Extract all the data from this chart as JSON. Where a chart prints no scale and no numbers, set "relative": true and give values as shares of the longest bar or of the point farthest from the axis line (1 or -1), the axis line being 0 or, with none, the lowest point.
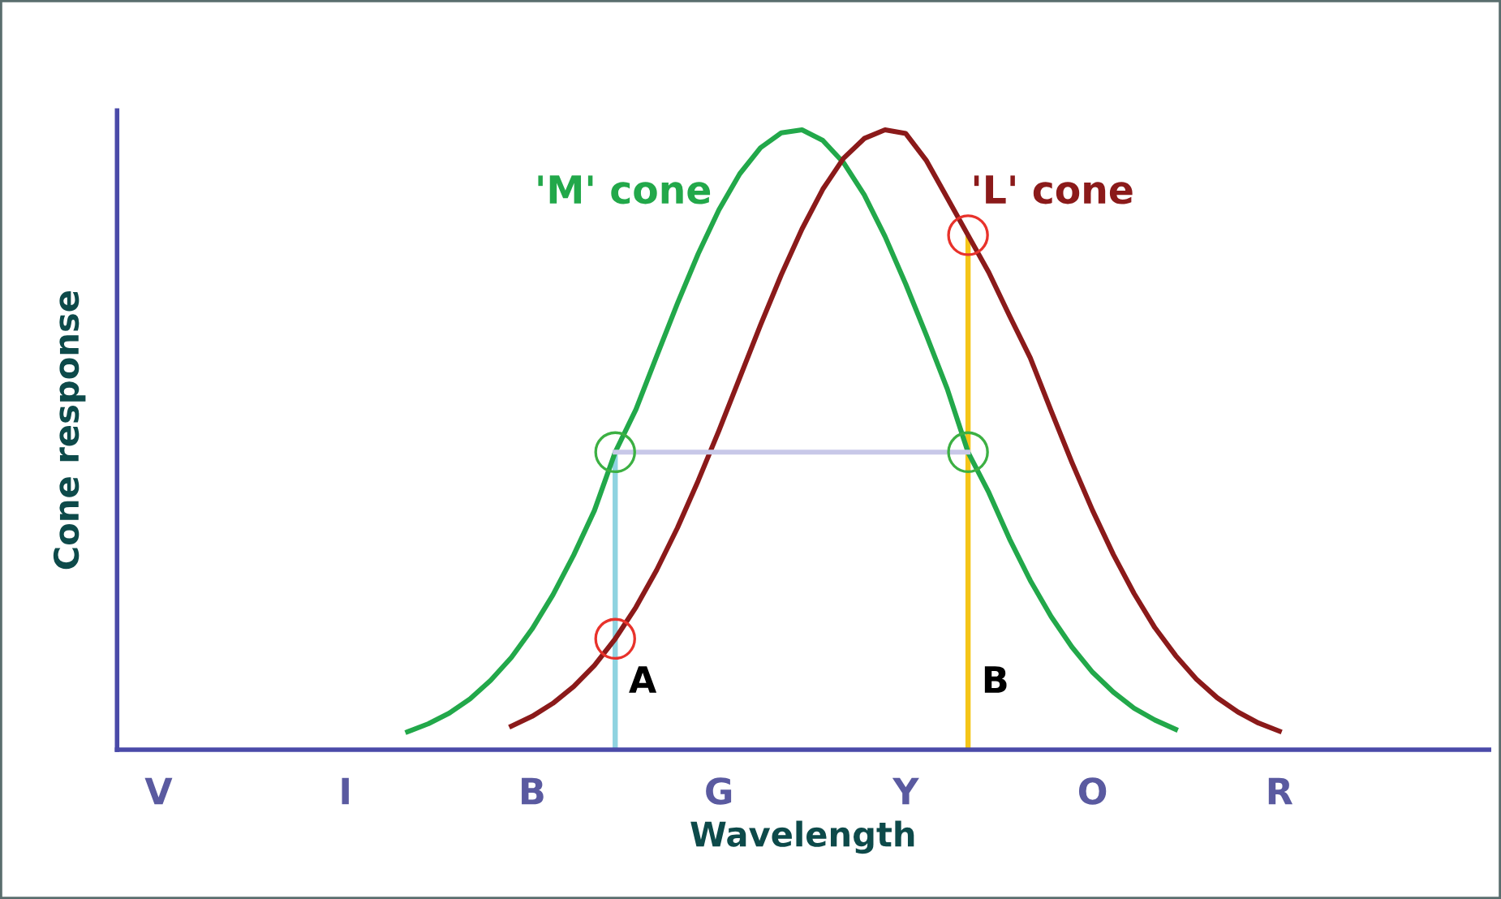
{
  "chart_data": {
    "type": "line",
    "relative": true,
    "xlabel": "Wavelength",
    "ylabel": "Cone response",
    "categories": [
      null,
      null,
      "V",
      null,
      null,
      null,
      null,
      null,
      null,
      null,
      null,
      "I",
      null,
      null,
      null,
      null,
      null,
      null,
      null,
      null,
      "B",
      null,
      null,
      null,
      null,
      null,
      null,
      null,
      null,
      "G",
      null,
      null,
      null,
      null,
      null,
      null,
      null,
      null,
      "Y",
      null,
      null,
      null,
      null,
      null,
      null,
      null,
      null,
      "O",
      null,
      null,
      null,
      null,
      null,
      null,
      null,
      null,
      "R",
      null,
      null,
      null,
      null,
      null,
      null,
      null,
      null,
      null,
      null
    ],
    "annotations": [
      "A",
      "B"
    ],
    "grid": false,
    "legend": false,
    "marker": "none",
    "line_style": "solid",
    "series": [
      {
        "name": "'M' cone",
        "color": "#22a84a",
        "values": [
          null,
          null,
          null,
          null,
          null,
          null,
          null,
          null,
          null,
          null,
          null,
          null,
          null,
          null,
          0.029,
          0.042,
          0.059,
          0.082,
          0.112,
          0.149,
          0.195,
          0.25,
          0.314,
          0.386,
          0.48,
          0.549,
          0.635,
          0.72,
          0.8,
          0.871,
          0.929,
          0.971,
          0.995,
          1,
          0.983,
          0.947,
          0.895,
          0.828,
          0.751,
          0.668,
          0.582,
          0.48,
          0.415,
          0.34,
          0.273,
          0.215,
          0.166,
          0.125,
          0.093,
          0.067,
          0.048,
          0.033,
          null,
          null,
          null,
          null,
          null,
          null,
          null,
          null,
          null,
          null,
          null,
          null,
          null,
          null,
          null
        ]
      },
      {
        "name": "'L' cone",
        "color": "#8b1a1a",
        "values": [
          null,
          null,
          null,
          null,
          null,
          null,
          null,
          null,
          null,
          null,
          null,
          null,
          null,
          null,
          null,
          null,
          null,
          null,
          null,
          0.038,
          0.054,
          0.075,
          0.102,
          0.136,
          0.179,
          0.23,
          0.29,
          0.358,
          0.434,
          0.515,
          0.6,
          0.685,
          0.766,
          0.84,
          0.904,
          0.954,
          0.986,
          1,
          0.994,
          0.95,
          0.89,
          0.83,
          0.77,
          0.7,
          0.632,
          0.547,
          0.464,
          0.386,
          0.315,
          0.252,
          0.197,
          0.152,
          0.114,
          0.084,
          0.061,
          0.043,
          0.03,
          null,
          null,
          null,
          null,
          null,
          null,
          null,
          null,
          null,
          null
        ]
      },
      {
        "color": "#c8c8e8",
        "values": [
          null,
          null,
          null,
          null,
          null,
          null,
          null,
          null,
          null,
          null,
          null,
          null,
          null,
          null,
          null,
          null,
          null,
          null,
          null,
          null,
          null,
          null,
          null,
          null,
          0.48,
          0.48,
          0.48,
          0.48,
          0.48,
          0.48,
          0.48,
          0.48,
          0.48,
          0.48,
          0.48,
          0.48,
          0.48,
          0.48,
          0.48,
          0.48,
          0.48,
          0.48,
          null,
          null,
          null,
          null,
          null,
          null,
          null,
          null,
          null,
          null,
          null,
          null,
          null,
          null,
          null,
          null,
          null,
          null,
          null,
          null,
          null,
          null,
          null,
          null,
          null
        ]
      },
      {
        "type": "bar",
        "colors": [
          null,
          null,
          null,
          null,
          null,
          null,
          null,
          null,
          null,
          null,
          null,
          null,
          null,
          null,
          null,
          null,
          null,
          null,
          null,
          null,
          null,
          null,
          null,
          null,
          "#8fd3e0",
          null,
          null,
          null,
          null,
          null,
          null,
          null,
          null,
          null,
          null,
          null,
          null,
          null,
          null,
          null,
          null,
          "#f5c518",
          null,
          null,
          null,
          null,
          null,
          null,
          null,
          null,
          null,
          null,
          null,
          null,
          null,
          null,
          null,
          null,
          null,
          null,
          null,
          null,
          null,
          null,
          null,
          null,
          null
        ],
        "values": [
          null,
          null,
          null,
          null,
          null,
          null,
          null,
          null,
          null,
          null,
          null,
          null,
          null,
          null,
          null,
          null,
          null,
          null,
          null,
          null,
          null,
          null,
          null,
          null,
          0.48,
          null,
          null,
          null,
          null,
          null,
          null,
          null,
          null,
          null,
          null,
          null,
          null,
          null,
          null,
          null,
          null,
          0.83,
          null,
          null,
          null,
          null,
          null,
          null,
          null,
          null,
          null,
          null,
          null,
          null,
          null,
          null,
          null,
          null,
          null,
          null,
          null,
          null,
          null,
          null,
          null,
          null,
          null
        ]
      },
      {
        "type": "scatter",
        "marker": "circle",
        "color": "#3cb043",
        "values": [
          null,
          null,
          null,
          null,
          null,
          null,
          null,
          null,
          null,
          null,
          null,
          null,
          null,
          null,
          null,
          null,
          null,
          null,
          null,
          null,
          null,
          null,
          null,
          null,
          0.48,
          null,
          null,
          null,
          null,
          null,
          null,
          null,
          null,
          null,
          null,
          null,
          null,
          null,
          null,
          null,
          null,
          0.48,
          null,
          null,
          null,
          null,
          null,
          null,
          null,
          null,
          null,
          null,
          null,
          null,
          null,
          null,
          null,
          null,
          null,
          null,
          null,
          null,
          null,
          null,
          null,
          null,
          null
        ]
      },
      {
        "type": "scatter",
        "marker": "circle",
        "color": "#e8322b",
        "values": [
          null,
          null,
          null,
          null,
          null,
          null,
          null,
          null,
          null,
          null,
          null,
          null,
          null,
          null,
          null,
          null,
          null,
          null,
          null,
          null,
          null,
          null,
          null,
          null,
          0.179,
          null,
          null,
          null,
          null,
          null,
          null,
          null,
          null,
          null,
          null,
          null,
          null,
          null,
          null,
          null,
          null,
          0.83,
          null,
          null,
          null,
          null,
          null,
          null,
          null,
          null,
          null,
          null,
          null,
          null,
          null,
          null,
          null,
          null,
          null,
          null,
          null,
          null,
          null,
          null,
          null,
          null,
          null
        ]
      }
    ]
  }
}
